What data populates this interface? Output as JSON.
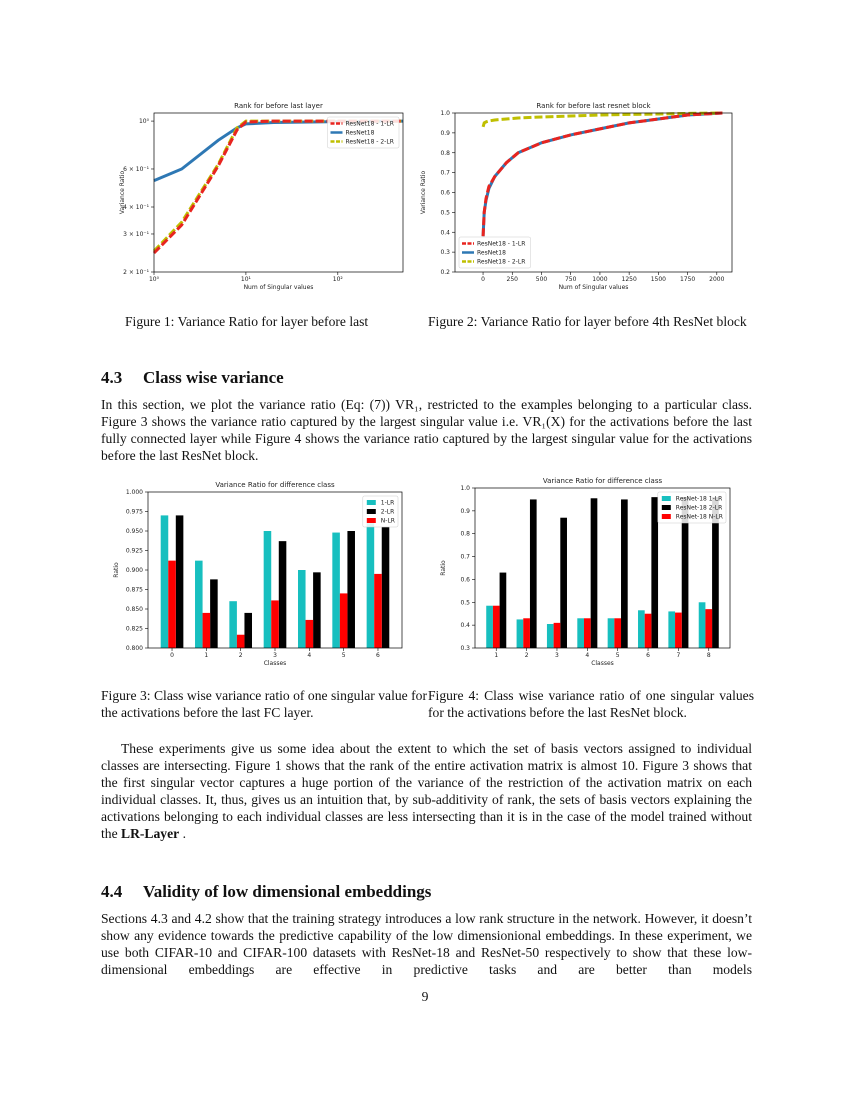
{
  "chart_data": [
    {
      "type": "line",
      "title": "Rank for before last layer",
      "xlabel": "Num of Singular values",
      "ylabel": "Variance Ratio",
      "xscale": "log",
      "yscale": "log",
      "legend": "upper right",
      "x": [
        1,
        2,
        5,
        8,
        10,
        20,
        100,
        512
      ],
      "series": [
        {
          "name": "ResNet18 - 1-LR",
          "color": "#e8241f",
          "linestyle": "dashed",
          "values": [
            0.245,
            0.33,
            0.62,
            0.91,
            0.99,
            1.0,
            1.0,
            1.0
          ]
        },
        {
          "name": "ResNet18",
          "color": "#2e78b4",
          "linestyle": "solid",
          "values": [
            0.53,
            0.6,
            0.815,
            0.93,
            0.97,
            0.985,
            0.995,
            1.0
          ]
        },
        {
          "name": "ResNet18 - 2-LR",
          "color": "#bfbf00",
          "linestyle": "dashed",
          "values": [
            0.25,
            0.34,
            0.63,
            0.93,
            1.0,
            1.0,
            1.0,
            1.0
          ]
        }
      ],
      "xlim": [
        1,
        512
      ],
      "ylim": [
        0.2,
        1.09
      ],
      "xticks": [
        {
          "value": 1,
          "label": "10⁰"
        },
        {
          "value": 10,
          "label": "10¹"
        },
        {
          "value": 100,
          "label": "10²"
        }
      ],
      "yticks": [
        {
          "value": 0.2,
          "label": "2 × 10⁻¹"
        },
        {
          "value": 0.3,
          "label": "3 × 10⁻¹"
        },
        {
          "value": 0.4,
          "label": "4 × 10⁻¹"
        },
        {
          "value": 0.6,
          "label": "6 × 10⁻¹"
        },
        {
          "value": 1,
          "label": "10⁰"
        }
      ]
    },
    {
      "type": "line",
      "title": "Rank for before last resnet block",
      "xlabel": "Num of Singular values",
      "ylabel": "Variance Ratio",
      "legend": "lower left",
      "x": [
        0,
        10,
        25,
        50,
        100,
        200,
        300,
        500,
        750,
        1000,
        1250,
        1500,
        1750,
        2048
      ],
      "series": [
        {
          "name": "ResNet18 - 1-LR",
          "color": "#e8241f",
          "linestyle": "dashed",
          "values": [
            0.38,
            0.5,
            0.57,
            0.63,
            0.68,
            0.75,
            0.8,
            0.85,
            0.89,
            0.92,
            0.95,
            0.97,
            0.99,
            1.0
          ]
        },
        {
          "name": "ResNet18",
          "color": "#2e78b4",
          "linestyle": "solid",
          "values": [
            0.38,
            0.5,
            0.56,
            0.62,
            0.68,
            0.75,
            0.8,
            0.85,
            0.89,
            0.92,
            0.95,
            0.97,
            0.99,
            1.0
          ]
        },
        {
          "name": "ResNet18 - 2-LR",
          "color": "#bfbf00",
          "linestyle": "dashed",
          "values": [
            0.93,
            0.95,
            0.955,
            0.96,
            0.965,
            0.97,
            0.975,
            0.98,
            0.985,
            0.99,
            0.993,
            0.995,
            0.998,
            1.0
          ]
        }
      ],
      "xlim": [
        -240,
        2130
      ],
      "ylim": [
        0.2,
        1.0
      ],
      "xticks": [
        0,
        250,
        500,
        750,
        1000,
        1250,
        1500,
        1750,
        2000
      ],
      "yticks": [
        0.2,
        0.3,
        0.4,
        0.5,
        0.6,
        0.7,
        0.8,
        0.9,
        {
          "value": 1,
          "label": "1.0"
        }
      ]
    },
    {
      "type": "bar",
      "title": "Variance Ratio for difference class",
      "xlabel": "Classes",
      "ylabel": "Ratio",
      "legend": "upper right",
      "categories": [
        "0",
        "1",
        "2",
        "3",
        "4",
        "5",
        "6"
      ],
      "series": [
        {
          "name": "1-LR",
          "color": "#17bfbf",
          "values": [
            0.97,
            0.912,
            0.86,
            0.95,
            0.9,
            0.948,
            0.96
          ]
        },
        {
          "name": "2-LR",
          "color": "#000000",
          "values": [
            0.97,
            0.888,
            0.845,
            0.937,
            0.897,
            0.95,
            0.955
          ]
        },
        {
          "name": "N-LR",
          "color": "#ff0000",
          "values": [
            0.912,
            0.845,
            0.817,
            0.861,
            0.836,
            0.87,
            0.895
          ]
        }
      ],
      "ylim": [
        0.8,
        1.0
      ],
      "yticks": [
        {
          "value": 0.8,
          "label": "0.800"
        },
        {
          "value": 0.825,
          "label": "0.825"
        },
        {
          "value": 0.85,
          "label": "0.850"
        },
        {
          "value": 0.875,
          "label": "0.875"
        },
        {
          "value": 0.9,
          "label": "0.900"
        },
        {
          "value": 0.925,
          "label": "0.925"
        },
        {
          "value": 0.95,
          "label": "0.950"
        },
        {
          "value": 0.975,
          "label": "0.975"
        },
        {
          "value": 1,
          "label": "1.000"
        }
      ]
    },
    {
      "type": "bar",
      "title": "Variance Ratio for difference class",
      "xlabel": "Classes",
      "ylabel": "Ratio",
      "legend": "upper right",
      "categories": [
        "1",
        "2",
        "3",
        "4",
        "5",
        "6",
        "7",
        "8"
      ],
      "series": [
        {
          "name": "ResNet-18 1-LR",
          "color": "#17bfbf",
          "values": [
            0.485,
            0.425,
            0.405,
            0.43,
            0.43,
            0.465,
            0.46,
            0.5
          ]
        },
        {
          "name": "ResNet-18 2-LR",
          "color": "#000000",
          "values": [
            0.63,
            0.95,
            0.87,
            0.955,
            0.95,
            0.96,
            0.96,
            0.96
          ]
        },
        {
          "name": "ResNet-18 N-LR",
          "color": "#ff0000",
          "values": [
            0.485,
            0.43,
            0.41,
            0.43,
            0.43,
            0.45,
            0.455,
            0.47
          ]
        }
      ],
      "ylim": [
        0.3,
        1.0
      ],
      "yticks": [
        0.3,
        0.4,
        0.5,
        0.6,
        0.7,
        0.8,
        0.9,
        {
          "value": 1,
          "label": "1.0"
        }
      ]
    }
  ],
  "document": {
    "captions": [
      "Figure 1: Variance Ratio for layer before last",
      "Figure 2: Variance Ratio for layer before 4th ResNet block",
      "Figure 3: Class wise variance ratio of one singular value for the activations before the last FC layer.",
      "Figure 4: Class wise variance ratio of one singular values for the activations before the last ResNet block."
    ],
    "section_43": {
      "number": "4.3",
      "title": "Class wise variance"
    },
    "paragraph_1": "In this section, we plot the variance ratio (Eq: (7)) VR₁, restricted to the examples belonging to a particular class. Figure 3 shows the variance ratio captured by the largest singular value i.e. VR₁(X) for the activations before the last fully connected layer while Figure 4 shows the variance ratio captured by the largest singular value for the activations before the last ResNet block.",
    "paragraph_2": {
      "text": "These experiments give us some idea about the extent to which the set of basis vectors assigned to individual classes are intersecting. Figure 1 shows that the rank of the entire activation matrix is almost 10. Figure 3 shows that the first singular vector captures a huge portion of the variance of the restriction of the activation matrix on each individual classes. It, thus, gives us an intuition that, by sub-additivity of rank, the sets of basis vectors explaining the activations belonging to each individual classes are less intersecting than it is in the case of the model trained without the",
      "bold": "LR-Layer",
      "end": "."
    },
    "section_44": {
      "number": "4.4",
      "title": "Validity of low dimensional embeddings"
    },
    "paragraph_3": "Sections 4.3 and 4.2 show that the training strategy introduces a low rank structure in the network. However, it doesn’t show any evidence towards the predictive capability of the low dimensionional embeddings. In these experiment, we use both CIFAR-10 and CIFAR-100 datasets with ResNet-18 and ResNet-50 respectively to show that these low-dimensional embeddings are effective in predictive tasks and are better than models",
    "page_number": "9"
  }
}
